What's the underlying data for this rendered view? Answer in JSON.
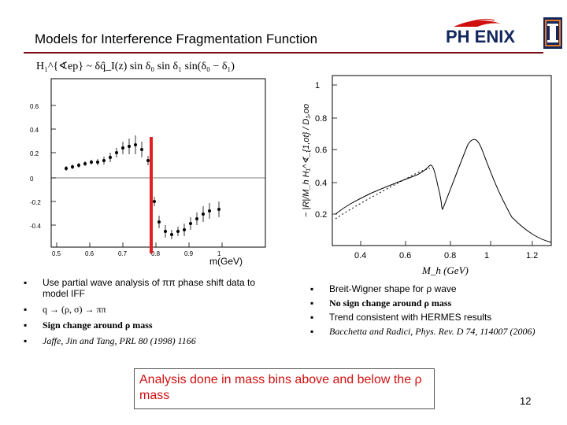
{
  "slide": {
    "title": "Models for Interference Fragmentation Function",
    "page_number": "12",
    "logo_text": "PH ENIX"
  },
  "left_plot": {
    "formula": "H₁^{∢ep} ~ δq̂_I(z) sin δ₀ sin δ₁ sin(δ₀ − δ₁)",
    "xlabel": "m(GeV)",
    "x_ticks": [
      "0.5",
      "0.6",
      "0.7",
      "0.8",
      "0.9",
      "1"
    ],
    "y_ticks": [
      "0.6",
      "0.4",
      "0.2",
      "0",
      "-0.2",
      "-0.4"
    ],
    "marker_color": "#e02020"
  },
  "right_plot": {
    "ylabel": "− |R|/M_h H₁^∢_{1,ot} / D₁,oo",
    "xlabel": "M_h (GeV)",
    "x_ticks": [
      "0.4",
      "0.6",
      "0.8",
      "1",
      "1.2"
    ],
    "y_ticks": [
      "1",
      "0.8",
      "0.6",
      "0.4",
      "0.2"
    ]
  },
  "left_bullets": [
    "Use partial wave analysis of ππ phase shift data to model IFF",
    "q → (ρ, σ) → ππ",
    "Sign change around ρ mass",
    "Jaffe, Jin and Tang, PRL 80 (1998) 1166"
  ],
  "right_bullets": [
    "Breit-Wigner shape for ρ wave",
    "No sign change around ρ mass",
    "Trend consistent with HERMES results",
    "Bacchetta and Radici, Phys. Rev. D 74, 114007 (2006)"
  ],
  "callout": "Analysis done in mass bins above and below the ρ mass"
}
